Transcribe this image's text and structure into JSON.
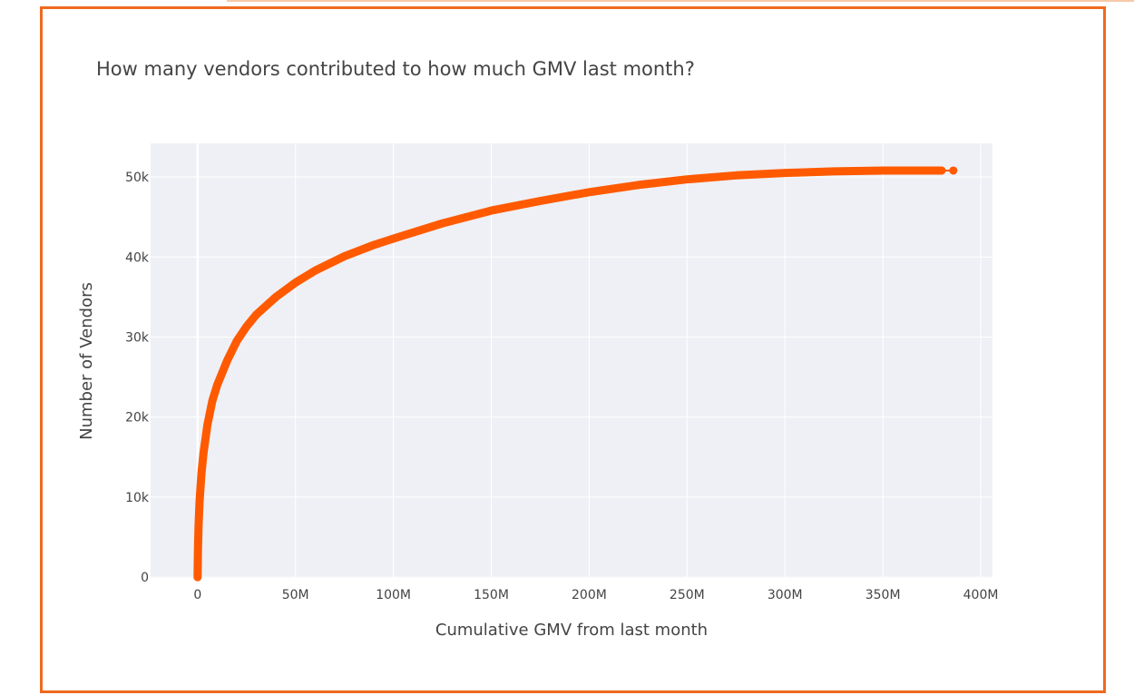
{
  "chart_data": {
    "type": "line",
    "title": "How many vendors contributed to how much GMV last month?",
    "xlabel": "Cumulative GMV from last month",
    "ylabel": "Number of Vendors",
    "xlim": [
      -24000000,
      406000000
    ],
    "ylim": [
      -100,
      54200
    ],
    "x_tick_values": [
      0,
      50000000,
      100000000,
      150000000,
      200000000,
      250000000,
      300000000,
      350000000,
      400000000
    ],
    "x_tick_labels": [
      "0",
      "50M",
      "100M",
      "150M",
      "200M",
      "250M",
      "300M",
      "350M",
      "400M"
    ],
    "y_tick_values": [
      0,
      10000,
      20000,
      30000,
      40000,
      50000
    ],
    "y_tick_labels": [
      "0",
      "10k",
      "20k",
      "30k",
      "40k",
      "50k"
    ],
    "grid": true,
    "series": [
      {
        "color": "#ff5a00",
        "x": [
          0,
          200000,
          500000,
          1000000,
          2000000,
          3000000,
          5000000,
          7500000,
          10000000,
          15000000,
          20000000,
          25000000,
          30000000,
          40000000,
          50000000,
          60000000,
          75000000,
          90000000,
          100000000,
          125000000,
          150000000,
          175000000,
          200000000,
          225000000,
          250000000,
          275000000,
          300000000,
          325000000,
          350000000,
          365000000,
          380000000,
          386000000
        ],
        "y": [
          0,
          3500,
          6500,
          9500,
          13000,
          15500,
          19000,
          22000,
          24000,
          27000,
          29500,
          31300,
          32800,
          35000,
          36800,
          38300,
          40100,
          41500,
          42300,
          44200,
          45800,
          47000,
          48100,
          49000,
          49700,
          50200,
          50500,
          50700,
          50800,
          50800,
          50800,
          50800
        ]
      }
    ]
  }
}
